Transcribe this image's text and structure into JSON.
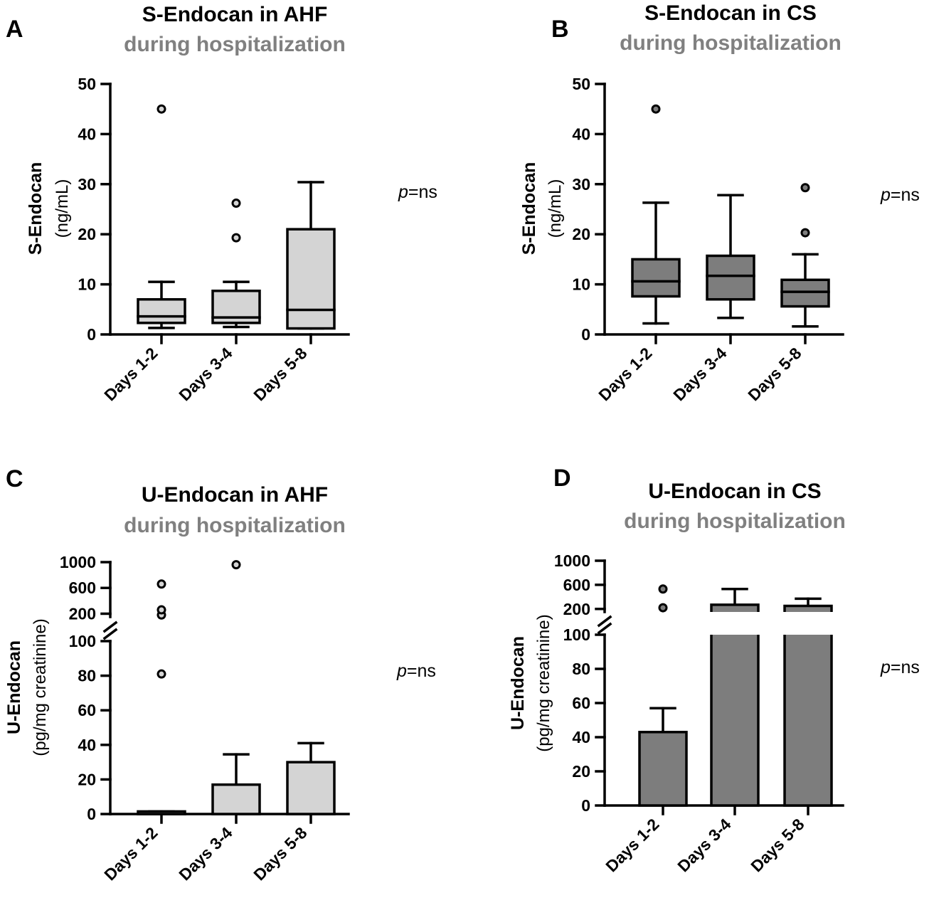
{
  "colors": {
    "light_fill": "#d4d4d4",
    "dark_fill": "#7d7d7d",
    "ink": "#000000",
    "subtitle": "#808080"
  },
  "chart_data": [
    {
      "id": "A",
      "type": "box",
      "letter": "A",
      "title": "S-Endocan in AHF",
      "subtitle": "during hospitalization",
      "ylabel": "S-Endocan",
      "yunit": "(ng/mL)",
      "pvalue_italic": "p",
      "pvalue_rest": "=ns",
      "categories": [
        "Days 1-2",
        "Days 3-4",
        "Days 5-8"
      ],
      "ylim": [
        0,
        50
      ],
      "yticks": [
        0,
        10,
        20,
        30,
        40,
        50
      ],
      "fill": "light",
      "boxes": [
        {
          "whisker_low": 1.3,
          "q1": 2.3,
          "median": 3.6,
          "q3": 7.0,
          "whisker_high": 10.5,
          "outliers": [
            45
          ]
        },
        {
          "whisker_low": 1.5,
          "q1": 2.3,
          "median": 3.4,
          "q3": 8.7,
          "whisker_high": 10.5,
          "outliers": [
            19.3,
            26.2
          ]
        },
        {
          "whisker_low": 1.2,
          "q1": 1.2,
          "median": 4.9,
          "q3": 21.0,
          "whisker_high": 30.4,
          "outliers": []
        }
      ]
    },
    {
      "id": "B",
      "type": "box",
      "letter": "B",
      "title": "S-Endocan in CS",
      "subtitle": "during hospitalization",
      "ylabel": "S-Endocan",
      "yunit": "(ng/mL)",
      "pvalue_italic": "p",
      "pvalue_rest": "=ns",
      "categories": [
        "Days 1-2",
        "Days 3-4",
        "Days 5-8"
      ],
      "ylim": [
        0,
        50
      ],
      "yticks": [
        0,
        10,
        20,
        30,
        40,
        50
      ],
      "fill": "dark",
      "boxes": [
        {
          "whisker_low": 2.2,
          "q1": 7.6,
          "median": 10.6,
          "q3": 15.0,
          "whisker_high": 26.3,
          "outliers": [
            45
          ]
        },
        {
          "whisker_low": 3.3,
          "q1": 7.0,
          "median": 11.7,
          "q3": 15.7,
          "whisker_high": 27.8,
          "outliers": []
        },
        {
          "whisker_low": 1.6,
          "q1": 5.6,
          "median": 8.5,
          "q3": 10.9,
          "whisker_high": 16.0,
          "outliers": [
            20.3,
            29.3
          ]
        }
      ]
    },
    {
      "id": "C",
      "type": "bar",
      "letter": "C",
      "title": "U-Endocan in AHF",
      "subtitle": "during hospitalization",
      "ylabel": "U-Endocan",
      "yunit": "(pg/mg creatinine)",
      "pvalue_italic": "p",
      "pvalue_rest": "=ns",
      "categories": [
        "Days 1-2",
        "Days 3-4",
        "Days 5-8"
      ],
      "ylim_lower": [
        0,
        100
      ],
      "yticks_lower": [
        0,
        20,
        40,
        60,
        80,
        100
      ],
      "ylim_upper": [
        150,
        1000
      ],
      "yticks_upper": [
        200,
        600,
        1000
      ],
      "fill": "light",
      "values": [
        1.5,
        17,
        30
      ],
      "errors_upper": [
        1.5,
        34.5,
        41
      ],
      "outliers": [
        [
          81,
          180,
          260,
          660
        ],
        [
          960
        ],
        []
      ]
    },
    {
      "id": "D",
      "type": "bar",
      "letter": "D",
      "title": "U-Endocan in CS",
      "subtitle": "during hospitalization",
      "ylabel": "U-Endocan",
      "yunit": "(pg/mg creatinine)",
      "pvalue_italic": "p",
      "pvalue_rest": "=ns",
      "categories": [
        "Days 1-2",
        "Days 3-4",
        "Days 5-8"
      ],
      "ylim_lower": [
        0,
        100
      ],
      "yticks_lower": [
        0,
        20,
        40,
        60,
        80,
        100
      ],
      "ylim_upper": [
        150,
        1000
      ],
      "yticks_upper": [
        200,
        600,
        1000
      ],
      "fill": "dark",
      "values": [
        43,
        270,
        250
      ],
      "errors_upper": [
        57,
        530,
        370
      ],
      "outliers": [
        [
          220,
          530
        ],
        [],
        []
      ]
    }
  ]
}
